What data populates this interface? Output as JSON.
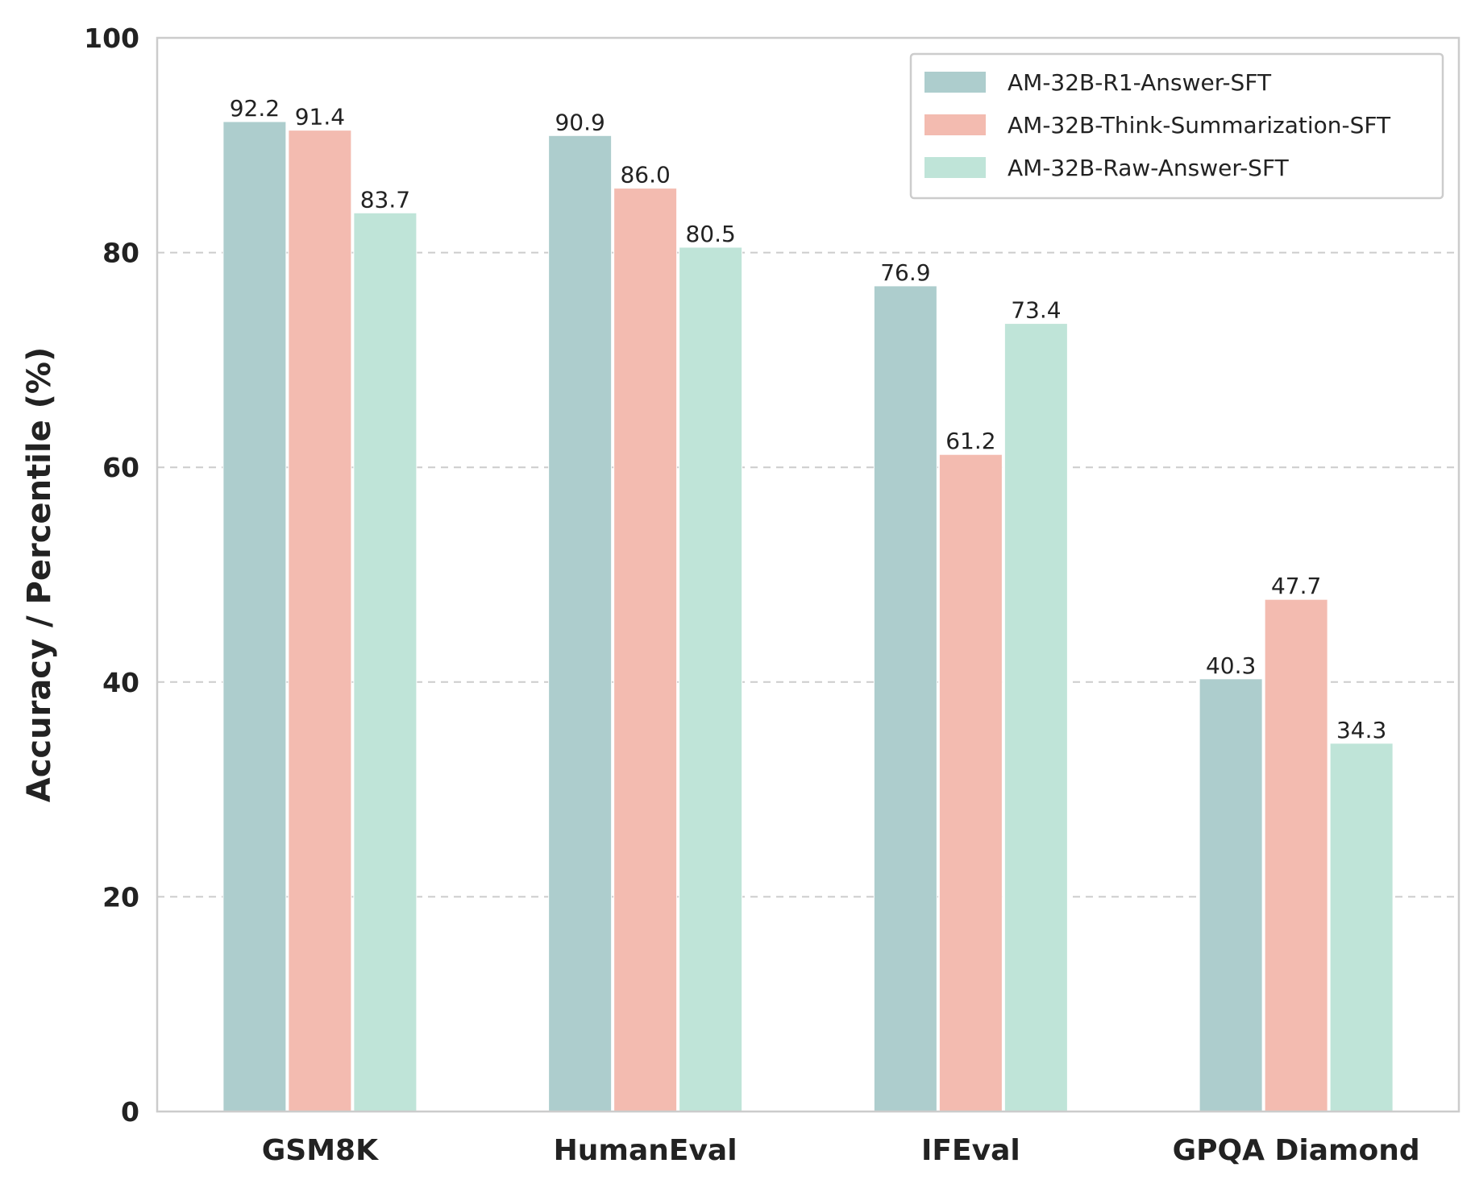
{
  "chart_data": {
    "type": "bar",
    "title": "",
    "xlabel": "",
    "ylabel": "Accuracy / Percentile (%)",
    "ylim": [
      0,
      100
    ],
    "yticks": [
      0,
      20,
      40,
      60,
      80,
      100
    ],
    "grid": "horizontal dashed",
    "legend_position": "top-right",
    "categories": [
      "GSM8K",
      "HumanEval",
      "IFEval",
      "GPQA Diamond"
    ],
    "series": [
      {
        "name": "AM-32B-R1-Answer-SFT",
        "color": "#adcdcd",
        "values": [
          92.2,
          90.9,
          76.9,
          40.3
        ]
      },
      {
        "name": "AM-32B-Think-Summarization-SFT",
        "color": "#f3bbb0",
        "values": [
          91.4,
          86.0,
          61.2,
          47.7
        ]
      },
      {
        "name": "AM-32B-Raw-Answer-SFT",
        "color": "#bfe4d8",
        "values": [
          83.7,
          80.5,
          73.4,
          34.3
        ]
      }
    ]
  }
}
